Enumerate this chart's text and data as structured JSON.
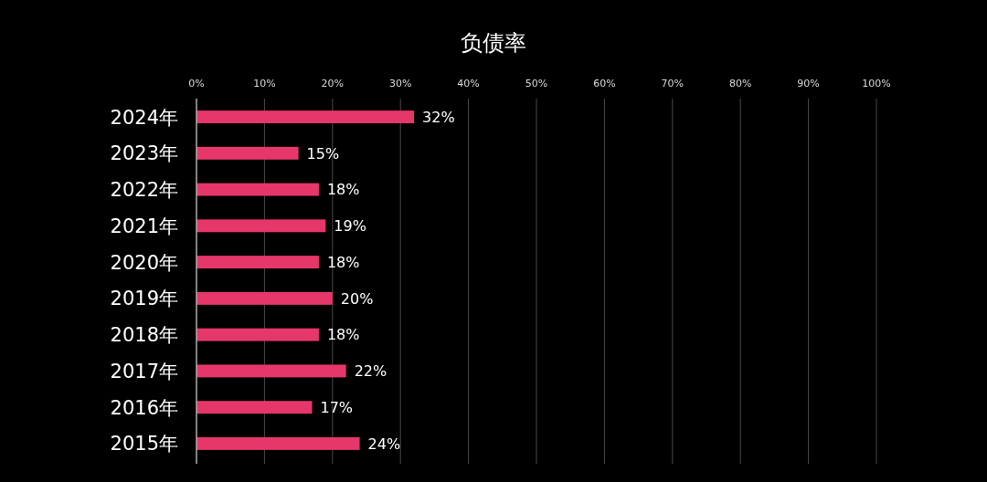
{
  "chart_data": {
    "type": "bar",
    "orientation": "horizontal",
    "title": "负债率",
    "categories": [
      "2024年",
      "2023年",
      "2022年",
      "2021年",
      "2020年",
      "2019年",
      "2018年",
      "2017年",
      "2016年",
      "2015年"
    ],
    "series": [
      {
        "color": "#e6376a",
        "values": [
          32,
          15,
          18,
          19,
          18,
          20,
          18,
          22,
          17,
          24
        ],
        "value_labels": [
          "32%",
          "15%",
          "18%",
          "19%",
          "18%",
          "20%",
          "18%",
          "22%",
          "17%",
          "24%"
        ]
      }
    ],
    "xlim": [
      0,
      100
    ],
    "xticks": [
      {
        "value": 0,
        "label": "0%"
      },
      {
        "value": 10,
        "label": "10%"
      },
      {
        "value": 20,
        "label": "20%"
      },
      {
        "value": 30,
        "label": "30%"
      },
      {
        "value": 40,
        "label": "40%"
      },
      {
        "value": 50,
        "label": "50%"
      },
      {
        "value": 60,
        "label": "60%"
      },
      {
        "value": 70,
        "label": "70%"
      },
      {
        "value": 80,
        "label": "80%"
      },
      {
        "value": 90,
        "label": "90%"
      },
      {
        "value": 100,
        "label": "100%"
      }
    ],
    "grid": "x"
  }
}
